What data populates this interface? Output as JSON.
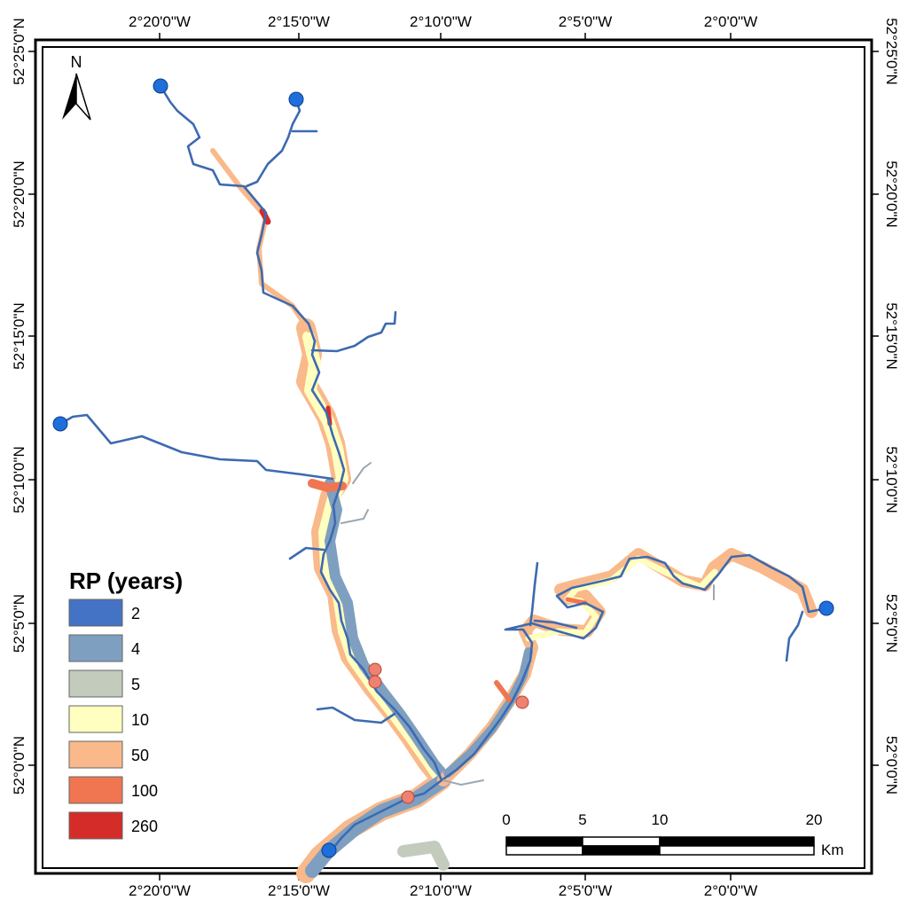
{
  "axes": {
    "top": [
      "2°20'0\"W",
      "2°15'0\"W",
      "2°10'0\"W",
      "2°5'0\"W",
      "2°0'0\"W"
    ],
    "bottom": [
      "2°20'0\"W",
      "2°15'0\"W",
      "2°10'0\"W",
      "2°5'0\"W",
      "2°0'0\"W"
    ],
    "left": [
      "52°25'0\"N",
      "52°20'0\"N",
      "52°15'0\"N",
      "52°10'0\"N",
      "52°5'0\"N",
      "52°0'0\"N"
    ],
    "right": [
      "52°25'0\"N",
      "52°20'0\"N",
      "52°15'0\"N",
      "52°10'0\"N",
      "52°5'0\"N",
      "52°0'0\"N"
    ]
  },
  "north_arrow": {
    "label": "N"
  },
  "legend": {
    "title": "RP (years)",
    "items": [
      {
        "label": "2",
        "color": "#4472c4"
      },
      {
        "label": "4",
        "color": "#7f9fc0"
      },
      {
        "label": "5",
        "color": "#c3cbbd"
      },
      {
        "label": "10",
        "color": "#ffffc0"
      },
      {
        "label": "50",
        "color": "#f9b98a"
      },
      {
        "label": "100",
        "color": "#ef7650"
      },
      {
        "label": "260",
        "color": "#d42c28"
      }
    ]
  },
  "scale_bar": {
    "labels": [
      "0",
      "5",
      "10",
      "20"
    ],
    "unit": "Km"
  },
  "markers": {
    "blue_color": "#1e6fdc",
    "salmon_color": "#f08070"
  }
}
